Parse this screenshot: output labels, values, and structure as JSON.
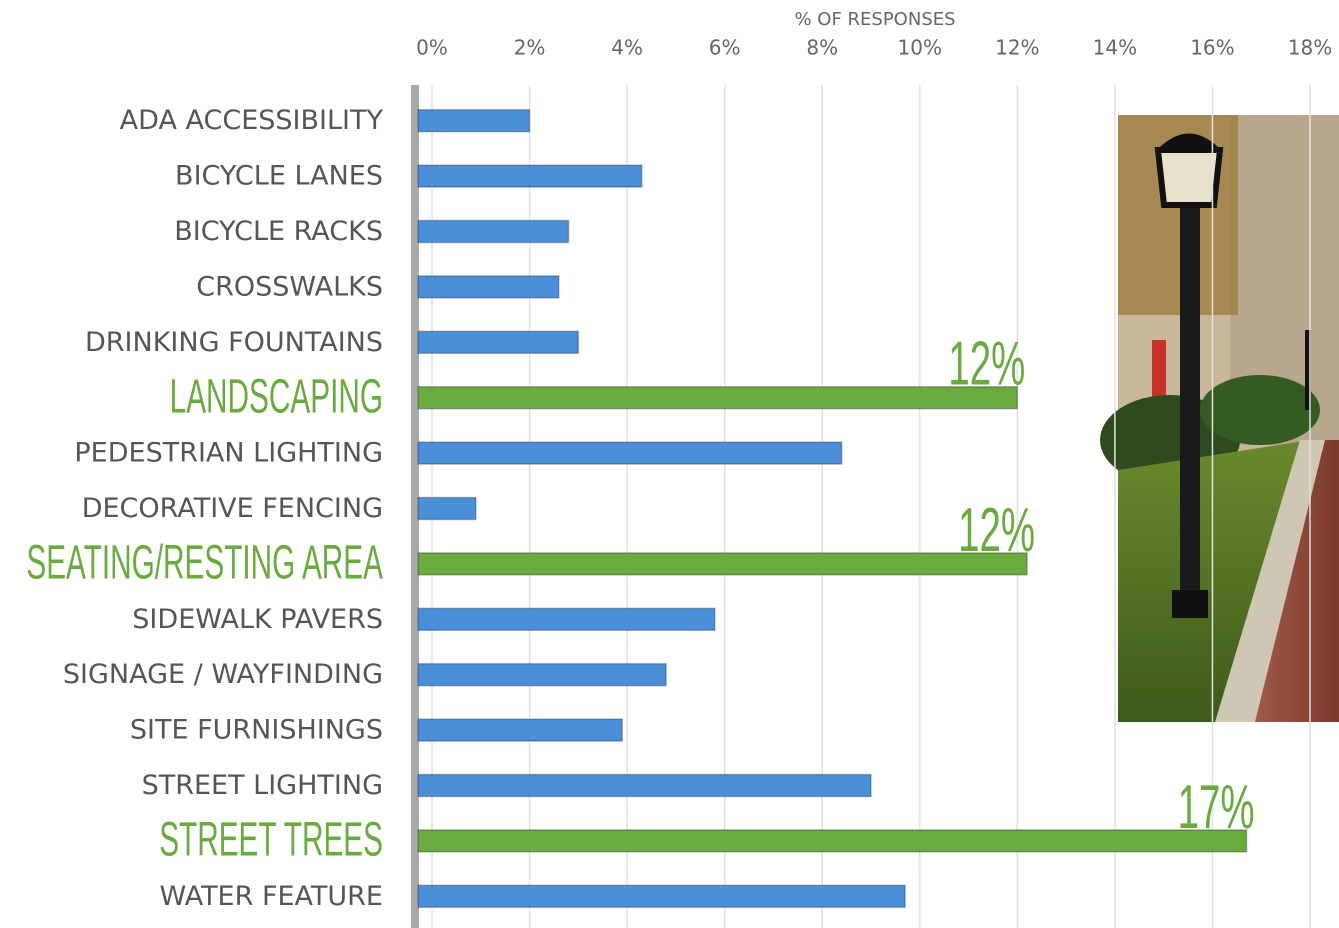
{
  "chart_data": {
    "type": "bar",
    "orientation": "horizontal",
    "x_label": "% OF RESPONSES",
    "categories": [
      "ADA ACCESSIBILITY",
      "BICYCLE LANES",
      "BICYCLE RACKS",
      "CROSSWALKS",
      "DRINKING FOUNTAINS",
      "LANDSCAPING",
      "PEDESTRIAN LIGHTING",
      "DECORATIVE FENCING",
      "SEATING/RESTING AREA",
      "SIDEWALK PAVERS",
      "SIGNAGE / WAYFINDING",
      "SITE FURNISHINGS",
      "STREET LIGHTING",
      "STREET TREES",
      "WATER FEATURE"
    ],
    "values": [
      2.0,
      4.3,
      2.8,
      2.6,
      3.0,
      12.0,
      8.4,
      0.9,
      12.2,
      5.8,
      4.8,
      3.9,
      9.0,
      16.7,
      9.7
    ],
    "value_labels": [
      null,
      null,
      null,
      null,
      null,
      "12%",
      null,
      null,
      "12%",
      null,
      null,
      null,
      null,
      "17%",
      null
    ],
    "colors": [
      "#4a8fd8",
      "#4a8fd8",
      "#4a8fd8",
      "#4a8fd8",
      "#4a8fd8",
      "#6aab3f",
      "#4a8fd8",
      "#4a8fd8",
      "#6aab3f",
      "#4a8fd8",
      "#4a8fd8",
      "#4a8fd8",
      "#4a8fd8",
      "#6aab3f",
      "#4a8fd8"
    ],
    "highlighted": [
      false,
      false,
      false,
      false,
      false,
      true,
      false,
      false,
      true,
      false,
      false,
      false,
      false,
      true,
      false
    ],
    "xlim": [
      0,
      18
    ],
    "xticks": [
      {
        "value": 0,
        "label": "0%"
      },
      {
        "value": 2,
        "label": "2%"
      },
      {
        "value": 4,
        "label": "4%"
      },
      {
        "value": 6,
        "label": "6%"
      },
      {
        "value": 8,
        "label": "8%"
      },
      {
        "value": 10,
        "label": "10%"
      },
      {
        "value": 12,
        "label": "12%"
      },
      {
        "value": 14,
        "label": "14%"
      },
      {
        "value": 16,
        "label": "16%"
      },
      {
        "value": 18,
        "label": "18%"
      }
    ],
    "grid": true
  }
}
